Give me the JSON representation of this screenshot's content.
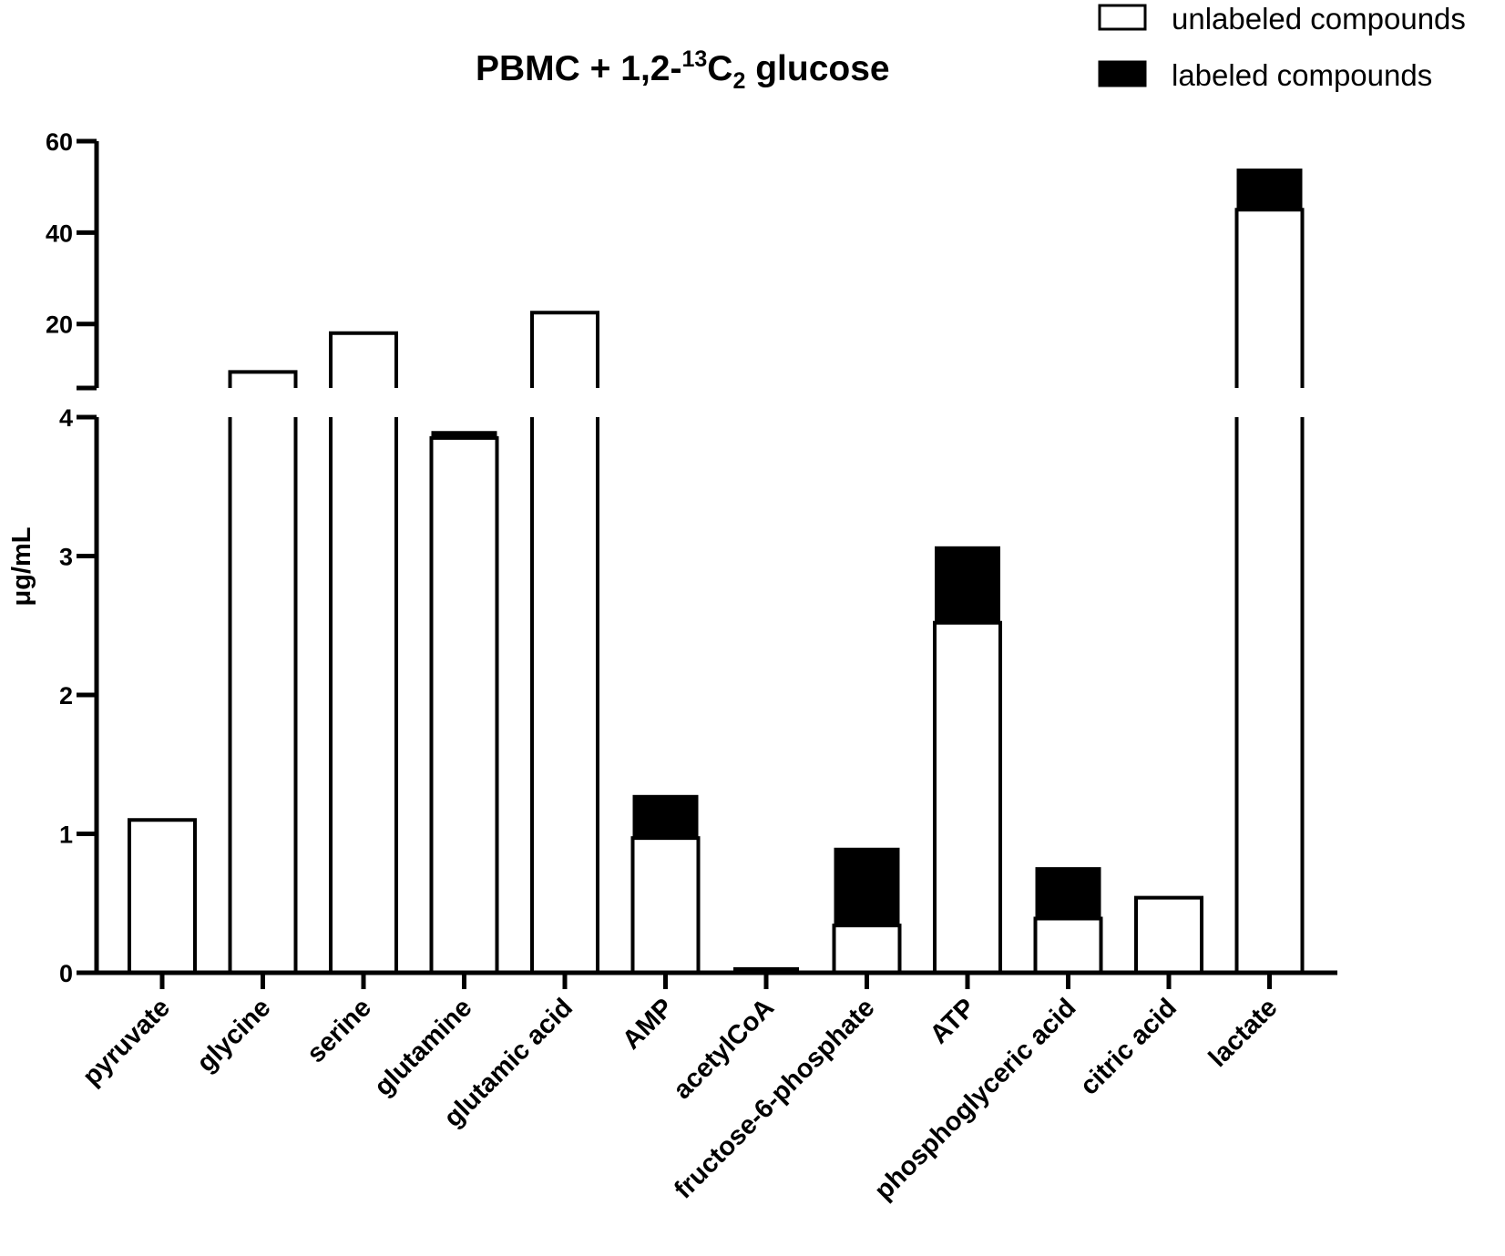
{
  "chart_data": {
    "type": "bar",
    "stacked": true,
    "broken_y_axis": true,
    "title": {
      "main": "PBMC + 1,2-",
      "sup": "13",
      "mid": "C",
      "sub": "2",
      "tail": " glucose"
    },
    "ylabel": "μg/mL",
    "xlabel": "",
    "lower_segment": {
      "ylim": [
        0,
        4
      ],
      "ticks": [
        0,
        1,
        2,
        3,
        4
      ]
    },
    "upper_segment": {
      "ylim": [
        6,
        60
      ],
      "ticks": [
        20,
        40,
        60
      ]
    },
    "categories": [
      "pyruvate",
      "glycine",
      "serine",
      "glutamine",
      "glutamic acid",
      "AMP",
      "acetylCoA",
      "fructose-6-phosphate",
      "ATP",
      "phosphoglyceric acid",
      "citric acid",
      "lactate"
    ],
    "series": [
      {
        "name": "unlabeled compounds",
        "color": "#ffffff",
        "values": [
          1.1,
          9.5,
          18,
          3.85,
          22.5,
          0.97,
          0.0,
          0.34,
          2.52,
          0.39,
          0.54,
          45
        ]
      },
      {
        "name": "labeled compounds",
        "color": "#000000",
        "values": [
          0,
          0,
          0,
          0.05,
          0,
          0.31,
          0.04,
          0.56,
          0.55,
          0.37,
          0,
          9
        ]
      }
    ],
    "legend_position": "top-right"
  }
}
